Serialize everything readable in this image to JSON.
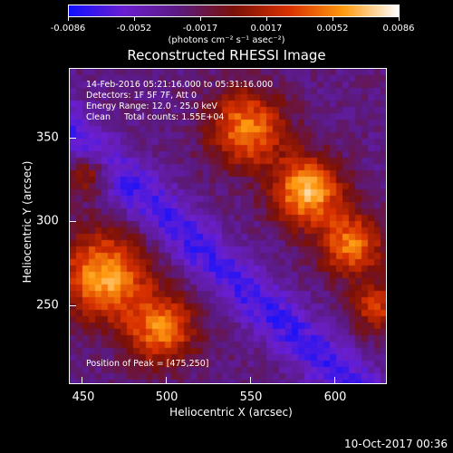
{
  "colorbar": {
    "ticks": [
      "-0.0086",
      "-0.0052",
      "-0.0017",
      "0.0017",
      "0.0052",
      "0.0086"
    ],
    "units": "(photons cm⁻² s⁻¹ asec⁻²)",
    "colors": [
      "#1010ff",
      "#6a1fd0",
      "#5a1a80",
      "#7a1008",
      "#d83000",
      "#ff9a10",
      "#ffffff"
    ]
  },
  "title": "Reconstructed RHESSI Image",
  "info": {
    "time": "14-Feb-2016 05:21:16.000 to 05:31:16.000",
    "detectors": "Detectors: 1F 5F 7F, Att 0",
    "energy": "Energy Range: 12.0 - 25.0 keV",
    "clean": "Clean     Total counts: 1.55E+04"
  },
  "peak": "Position of Peak = [475,250]",
  "axes": {
    "xlabel": "Heliocentric X (arcsec)",
    "ylabel": "Heliocentric Y (arcsec)",
    "xticks": [
      "450",
      "500",
      "550",
      "600"
    ],
    "yticks": [
      "350",
      "300",
      "250"
    ]
  },
  "footer": "10-Oct-2017 00:36"
}
